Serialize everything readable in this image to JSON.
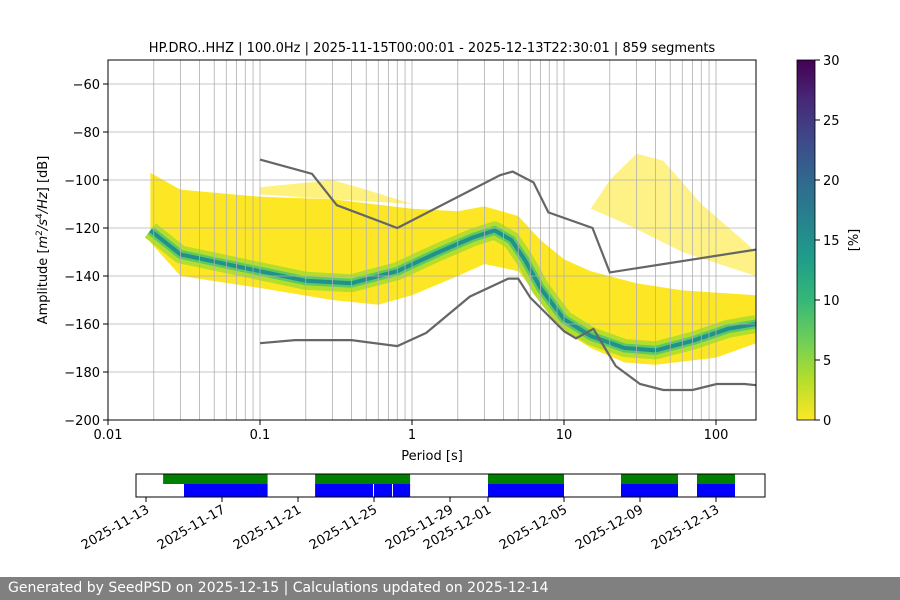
{
  "chart_data": [
    {
      "type": "heatmap",
      "title": "HP.DRO..HHZ | 100.0Hz | 2025-11-15T00:00:01 - 2025-12-13T22:30:01 | 859 segments",
      "xlabel": "Period [s]",
      "ylabel": "Amplitude [m²/s⁴/Hz] [dB]",
      "xscale": "log",
      "xlim": [
        0.01,
        183
      ],
      "ylim": [
        -200,
        -50
      ],
      "xticks": [
        "0.01",
        "0.1",
        "1",
        "10",
        "100"
      ],
      "yticks": [
        "−200",
        "−180",
        "−160",
        "−140",
        "−120",
        "−100",
        "−80",
        "−60"
      ],
      "grid": true,
      "colorbar": {
        "label": "[%]",
        "range": [
          0,
          30
        ],
        "ticks": [
          "0",
          "5",
          "10",
          "15",
          "20",
          "25",
          "30"
        ],
        "colormap": "viridis_r"
      },
      "psd_mode": [
        [
          0.019,
          -121
        ],
        [
          0.03,
          -131
        ],
        [
          0.05,
          -134
        ],
        [
          0.1,
          -138
        ],
        [
          0.2,
          -142
        ],
        [
          0.4,
          -143
        ],
        [
          0.8,
          -138
        ],
        [
          1.5,
          -130
        ],
        [
          2.5,
          -124
        ],
        [
          3.5,
          -121
        ],
        [
          4.5,
          -125
        ],
        [
          5.5,
          -133
        ],
        [
          7,
          -145
        ],
        [
          10,
          -158
        ],
        [
          15,
          -165
        ],
        [
          25,
          -170
        ],
        [
          40,
          -171
        ],
        [
          70,
          -167
        ],
        [
          120,
          -162
        ],
        [
          183,
          -160
        ]
      ],
      "psd_upper": [
        [
          0.019,
          -97
        ],
        [
          0.03,
          -104
        ],
        [
          0.1,
          -107
        ],
        [
          0.3,
          -108
        ],
        [
          1,
          -112
        ],
        [
          2,
          -113
        ],
        [
          3,
          -111
        ],
        [
          5,
          -115
        ],
        [
          7,
          -125
        ],
        [
          10,
          -133
        ],
        [
          15,
          -138
        ],
        [
          30,
          -143
        ],
        [
          60,
          -146
        ],
        [
          183,
          -148
        ]
      ],
      "psd_lower": [
        [
          0.019,
          -126
        ],
        [
          0.03,
          -140
        ],
        [
          0.1,
          -145
        ],
        [
          0.3,
          -150
        ],
        [
          0.6,
          -152
        ],
        [
          1,
          -148
        ],
        [
          2,
          -140
        ],
        [
          3,
          -135
        ],
        [
          5,
          -138
        ],
        [
          7,
          -150
        ],
        [
          10,
          -163
        ],
        [
          15,
          -170
        ],
        [
          25,
          -176
        ],
        [
          40,
          -177
        ],
        [
          100,
          -174
        ],
        [
          183,
          -168
        ]
      ],
      "series": [
        {
          "values": [
            [
              0.1,
              -91.5
            ],
            [
              0.22,
              -97.4
            ],
            [
              0.32,
              -110.5
            ],
            [
              0.8,
              -120
            ],
            [
              3.8,
              -98
            ],
            [
              4.6,
              -96.5
            ],
            [
              6.3,
              -101
            ],
            [
              7.9,
              -113.5
            ],
            [
              15.4,
              -120
            ],
            [
              20,
              -138.5
            ],
            [
              183,
              -129
            ]
          ]
        },
        {
          "values": [
            [
              0.1,
              -168
            ],
            [
              0.17,
              -166.7
            ],
            [
              0.4,
              -166.7
            ],
            [
              0.8,
              -169.2
            ],
            [
              1.24,
              -163.7
            ],
            [
              2.4,
              -148.6
            ],
            [
              4.3,
              -141.1
            ],
            [
              5,
              -141.1
            ],
            [
              6,
              -149
            ],
            [
              10,
              -163
            ],
            [
              12,
              -166
            ],
            [
              15.6,
              -162
            ],
            [
              21.9,
              -177.5
            ],
            [
              31.6,
              -185
            ],
            [
              45,
              -187.5
            ],
            [
              70,
              -187.5
            ],
            [
              101,
              -185
            ],
            [
              154,
              -185
            ],
            [
              183,
              -185.5
            ]
          ]
        }
      ],
      "colors": {
        "noise_model": "#666666",
        "low": "#fde725",
        "mid": "#5ec962",
        "high": "#21918c"
      }
    },
    {
      "type": "timeline",
      "xlim": [
        "2025-11-12.5",
        "2025-12-14.6"
      ],
      "xticks": [
        "2025-11-13",
        "2025-11-17",
        "2025-11-21",
        "2025-11-25",
        "2025-11-29",
        "2025-12-01",
        "2025-12-05",
        "2025-12-09",
        "2025-12-13"
      ],
      "data_available": [
        [
          "2025-11-13.9",
          "2025-11-19.4"
        ],
        [
          "2025-11-21.9",
          "2025-11-26.9"
        ],
        [
          "2025-12-01.0",
          "2025-12-05.0"
        ],
        [
          "2025-12-08.0",
          "2025-12-11.0"
        ],
        [
          "2025-12-12.0",
          "2025-12-14.0"
        ]
      ],
      "psd_used": [
        [
          "2025-11-15.0",
          "2025-11-19.4"
        ],
        [
          "2025-11-21.9",
          "2025-11-24.95"
        ],
        [
          "2025-11-25.0",
          "2025-11-25.95"
        ],
        [
          "2025-11-26.0",
          "2025-11-26.9"
        ],
        [
          "2025-12-01.0",
          "2025-12-05.0"
        ],
        [
          "2025-12-08.0",
          "2025-12-11.0"
        ],
        [
          "2025-12-12.0",
          "2025-12-14.0"
        ]
      ],
      "colors": {
        "available": "#008000",
        "used": "#0000ff"
      }
    }
  ],
  "footer": "Generated by SeedPSD on 2025-12-15 | Calculations updated on 2025-12-14"
}
